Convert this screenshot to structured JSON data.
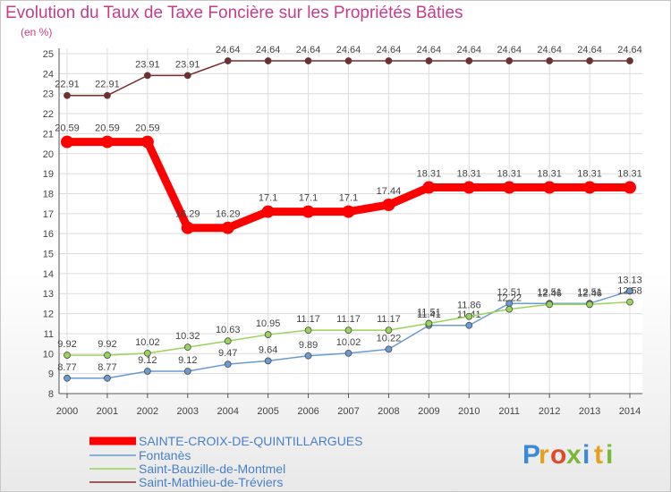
{
  "chart_data": {
    "type": "line",
    "title": "Evolution du Taux de Taxe Foncière sur les Propriétés Bâties",
    "ylabel": "(en %)",
    "xlabel": "",
    "ylim": [
      8,
      25
    ],
    "yticks": [
      "8",
      "9",
      "10",
      "11",
      "12",
      "13",
      "14",
      "15",
      "16",
      "17",
      "18",
      "19",
      "20",
      "21",
      "22",
      "23",
      "24",
      "25"
    ],
    "x": [
      "2000",
      "2001",
      "2002",
      "2003",
      "2004",
      "2005",
      "2006",
      "2007",
      "2008",
      "2009",
      "2010",
      "2011",
      "2012",
      "2013",
      "2014"
    ],
    "grid": true,
    "legend_position": "bottom-left",
    "series": [
      {
        "name": "SAINTE-CROIX-DE-QUINTILLARGUES",
        "color": "#ff0000",
        "values": [
          20.59,
          20.59,
          20.59,
          16.29,
          16.29,
          17.1,
          17.1,
          17.1,
          17.44,
          18.31,
          18.31,
          18.31,
          18.31,
          18.31,
          18.31
        ],
        "labels": [
          "20.59",
          "20.59",
          "20.59",
          "16.29",
          "16.29",
          "17.1",
          "17.1",
          "17.1",
          "17.44",
          "18.31",
          "18.31",
          "18.31",
          "18.31",
          "18.31",
          "18.31"
        ]
      },
      {
        "name": "Fontanès",
        "color": "#6b9bd2",
        "values": [
          8.77,
          8.77,
          9.12,
          9.12,
          9.47,
          9.64,
          9.89,
          10.02,
          10.22,
          11.41,
          11.41,
          12.51,
          12.51,
          12.51,
          13.13
        ],
        "labels": [
          "8.77",
          "8.77",
          "9.12",
          "9.12",
          "9.47",
          "9.64",
          "9.89",
          "10.02",
          "10.22",
          "11.41",
          "11.41",
          "12.51",
          "12.51",
          "12.51",
          "13.13"
        ]
      },
      {
        "name": "Saint-Bauzille-de-Montmel",
        "color": "#99d45a",
        "values": [
          9.92,
          9.92,
          10.02,
          10.32,
          10.63,
          10.95,
          11.17,
          11.17,
          11.17,
          11.51,
          11.86,
          12.22,
          12.46,
          12.46,
          12.58
        ],
        "labels": [
          "9.92",
          "9.92",
          "10.02",
          "10.32",
          "10.63",
          "10.95",
          "11.17",
          "11.17",
          "11.17",
          "11.51",
          "11.86",
          "12.22",
          "12.46",
          "12.46",
          "12.58"
        ]
      },
      {
        "name": "Saint-Mathieu-de-Tréviers",
        "color": "#7a2a2a",
        "values": [
          22.91,
          22.91,
          23.91,
          23.91,
          24.64,
          24.64,
          24.64,
          24.64,
          24.64,
          24.64,
          24.64,
          24.64,
          24.64,
          24.64,
          24.64
        ],
        "labels": [
          "22.91",
          "22.91",
          "23.91",
          "23.91",
          "24.64",
          "24.64",
          "24.64",
          "24.64",
          "24.64",
          "24.64",
          "24.64",
          "24.64",
          "24.64",
          "24.64",
          "24.64"
        ]
      }
    ]
  },
  "brand": {
    "letters": [
      "P",
      "r",
      "o",
      "x",
      "i",
      "t",
      "i"
    ],
    "colors": [
      "#3a8ad6",
      "#e3a020",
      "#e04a2a",
      "#7ab83a",
      "#3a8ad6",
      "#e3a020",
      "#7ab83a"
    ]
  }
}
